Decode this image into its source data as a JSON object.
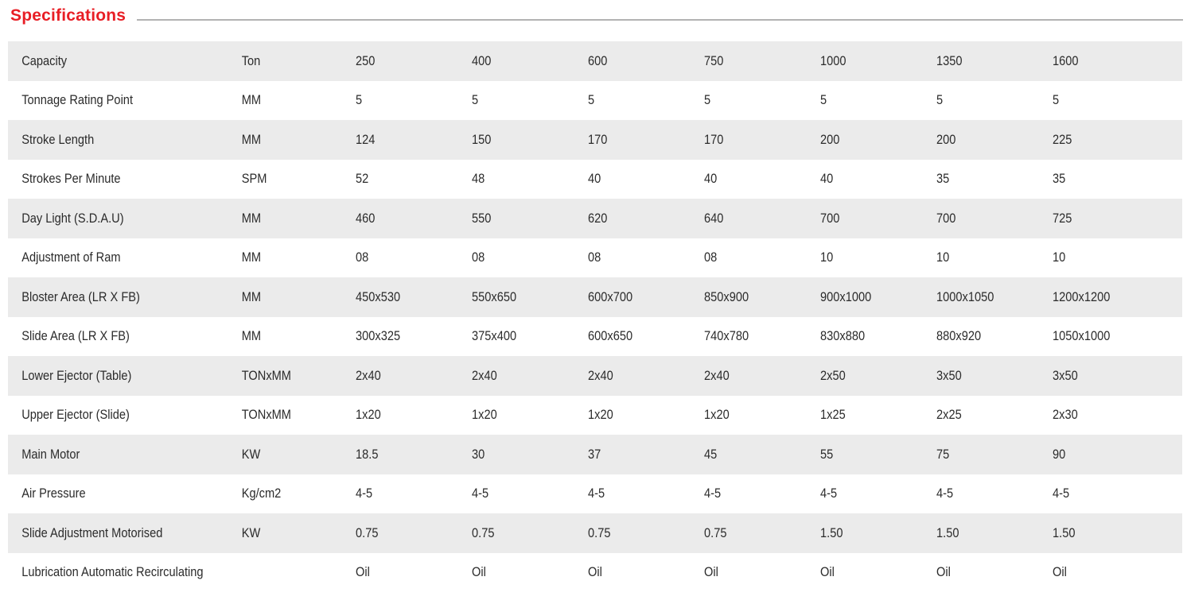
{
  "page": {
    "title": "Specifications"
  },
  "colors": {
    "accent_red": "#e81e25",
    "row_stripe": "#ebebeb",
    "rule_gray": "#b2b2b2",
    "text": "#2b2b2b"
  },
  "table": {
    "rows": [
      {
        "label": "Capacity",
        "unit": "Ton",
        "values": [
          "250",
          "400",
          "600",
          "750",
          "1000",
          "1350",
          "1600"
        ]
      },
      {
        "label": "Tonnage Rating Point",
        "unit": "MM",
        "values": [
          "5",
          "5",
          "5",
          "5",
          "5",
          "5",
          "5"
        ]
      },
      {
        "label": "Stroke Length",
        "unit": "MM",
        "values": [
          "124",
          "150",
          "170",
          "170",
          "200",
          "200",
          "225"
        ]
      },
      {
        "label": "Strokes Per Minute",
        "unit": "SPM",
        "values": [
          "52",
          "48",
          "40",
          "40",
          "40",
          "35",
          "35"
        ]
      },
      {
        "label": "Day Light (S.D.A.U)",
        "unit": "MM",
        "values": [
          "460",
          "550",
          "620",
          "640",
          "700",
          "700",
          "725"
        ]
      },
      {
        "label": "Adjustment of Ram",
        "unit": "MM",
        "values": [
          "08",
          "08",
          "08",
          "08",
          "10",
          "10",
          "10"
        ]
      },
      {
        "label": "Bloster Area (LR X FB)",
        "unit": "MM",
        "values": [
          "450x530",
          "550x650",
          "600x700",
          "850x900",
          "900x1000",
          "1000x1050",
          "1200x1200"
        ]
      },
      {
        "label": "Slide Area (LR X FB)",
        "unit": "MM",
        "values": [
          "300x325",
          "375x400",
          "600x650",
          "740x780",
          "830x880",
          "880x920",
          "1050x1000"
        ]
      },
      {
        "label": "Lower Ejector (Table)",
        "unit": "TONxMM",
        "values": [
          "2x40",
          "2x40",
          "2x40",
          "2x40",
          "2x50",
          "3x50",
          "3x50"
        ]
      },
      {
        "label": "Upper Ejector (Slide)",
        "unit": "TONxMM",
        "values": [
          "1x20",
          "1x20",
          "1x20",
          "1x20",
          "1x25",
          "2x25",
          "2x30"
        ]
      },
      {
        "label": "Main Motor",
        "unit": "KW",
        "values": [
          "18.5",
          "30",
          "37",
          "45",
          "55",
          "75",
          "90"
        ]
      },
      {
        "label": "Air Pressure",
        "unit": "Kg/cm2",
        "values": [
          "4-5",
          "4-5",
          "4-5",
          "4-5",
          "4-5",
          "4-5",
          "4-5"
        ]
      },
      {
        "label": "Slide Adjustment Motorised",
        "unit": "KW",
        "values": [
          "0.75",
          "0.75",
          "0.75",
          "0.75",
          "1.50",
          "1.50",
          "1.50"
        ]
      },
      {
        "label": "Lubrication Automatic Recirculating",
        "unit": "",
        "values": [
          "Oil",
          "Oil",
          "Oil",
          "Oil",
          "Oil",
          "Oil",
          "Oil"
        ]
      }
    ]
  }
}
